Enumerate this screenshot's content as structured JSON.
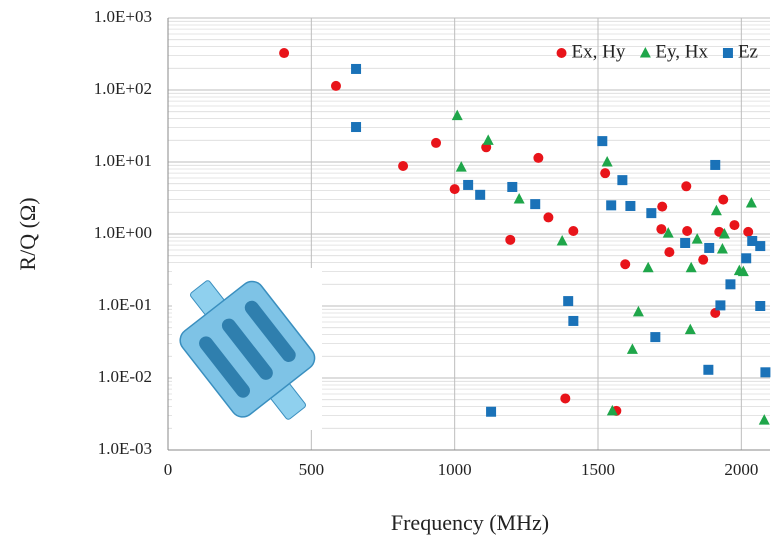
{
  "chart_data": {
    "type": "scatter",
    "xlabel": "Frequency (MHz)",
    "ylabel": "R/Q (Ω)",
    "xlim": [
      0,
      2100
    ],
    "xticks": [
      0,
      500,
      1000,
      1500,
      2000
    ],
    "ylim": [
      0.001,
      1000
    ],
    "log_y": true,
    "yticks": [
      {
        "value": 0.001,
        "label": "1.0E-03"
      },
      {
        "value": 0.01,
        "label": "1.0E-02"
      },
      {
        "value": 0.1,
        "label": "1.0E-01"
      },
      {
        "value": 1,
        "label": "1.0E+00"
      },
      {
        "value": 10,
        "label": "1.0E+01"
      },
      {
        "value": 100,
        "label": "1.0E+02"
      },
      {
        "value": 1000,
        "label": "1.0E+03"
      }
    ],
    "grid": true,
    "legend": "upper right",
    "series": [
      {
        "name": "Ex, Hy",
        "color": "#e8141a",
        "marker": "circle",
        "x": [
          405,
          586,
          820,
          935,
          1000,
          1110,
          1194,
          1292,
          1327,
          1386,
          1414,
          1525,
          1564,
          1595,
          1721,
          1724,
          1749,
          1808,
          1811,
          1867,
          1909,
          1923,
          1937,
          1976,
          2024
        ],
        "values": [
          326,
          114,
          8.8,
          18.4,
          4.2,
          16,
          0.83,
          11.4,
          1.7,
          0.0052,
          1.1,
          7.0,
          0.0035,
          0.38,
          1.17,
          2.4,
          0.56,
          4.6,
          1.1,
          0.44,
          0.08,
          1.07,
          3.0,
          1.33,
          1.07
        ]
      },
      {
        "name": "Ey, Hx",
        "color": "#1fa64a",
        "marker": "triangle",
        "x": [
          1009,
          1023,
          1117,
          1225,
          1375,
          1532,
          1550,
          1620,
          1641,
          1675,
          1745,
          1825,
          1822,
          1846,
          1913,
          1934,
          1941,
          1993,
          2007,
          2035,
          2080
        ],
        "values": [
          44,
          8.5,
          20,
          3.06,
          0.8,
          10,
          0.0035,
          0.025,
          0.083,
          0.34,
          1.03,
          0.34,
          0.047,
          0.85,
          2.1,
          0.62,
          1.0,
          0.31,
          0.3,
          2.7,
          0.0026
        ]
      },
      {
        "name": "Ez",
        "color": "#1a72b8",
        "marker": "square",
        "x": [
          656,
          656,
          1047,
          1089,
          1127,
          1201,
          1281,
          1396,
          1414,
          1515,
          1546,
          1585,
          1613,
          1686,
          1700,
          1804,
          1885,
          1888,
          1909,
          1927,
          1962,
          2017,
          2038,
          2066,
          2066,
          2084
        ],
        "values": [
          196,
          30.6,
          4.8,
          3.5,
          0.0034,
          4.5,
          2.6,
          0.117,
          0.062,
          19.5,
          2.5,
          5.6,
          2.45,
          1.95,
          0.037,
          0.75,
          0.013,
          0.64,
          9.1,
          0.102,
          0.2,
          0.46,
          0.8,
          0.68,
          0.1,
          0.012
        ]
      }
    ]
  }
}
